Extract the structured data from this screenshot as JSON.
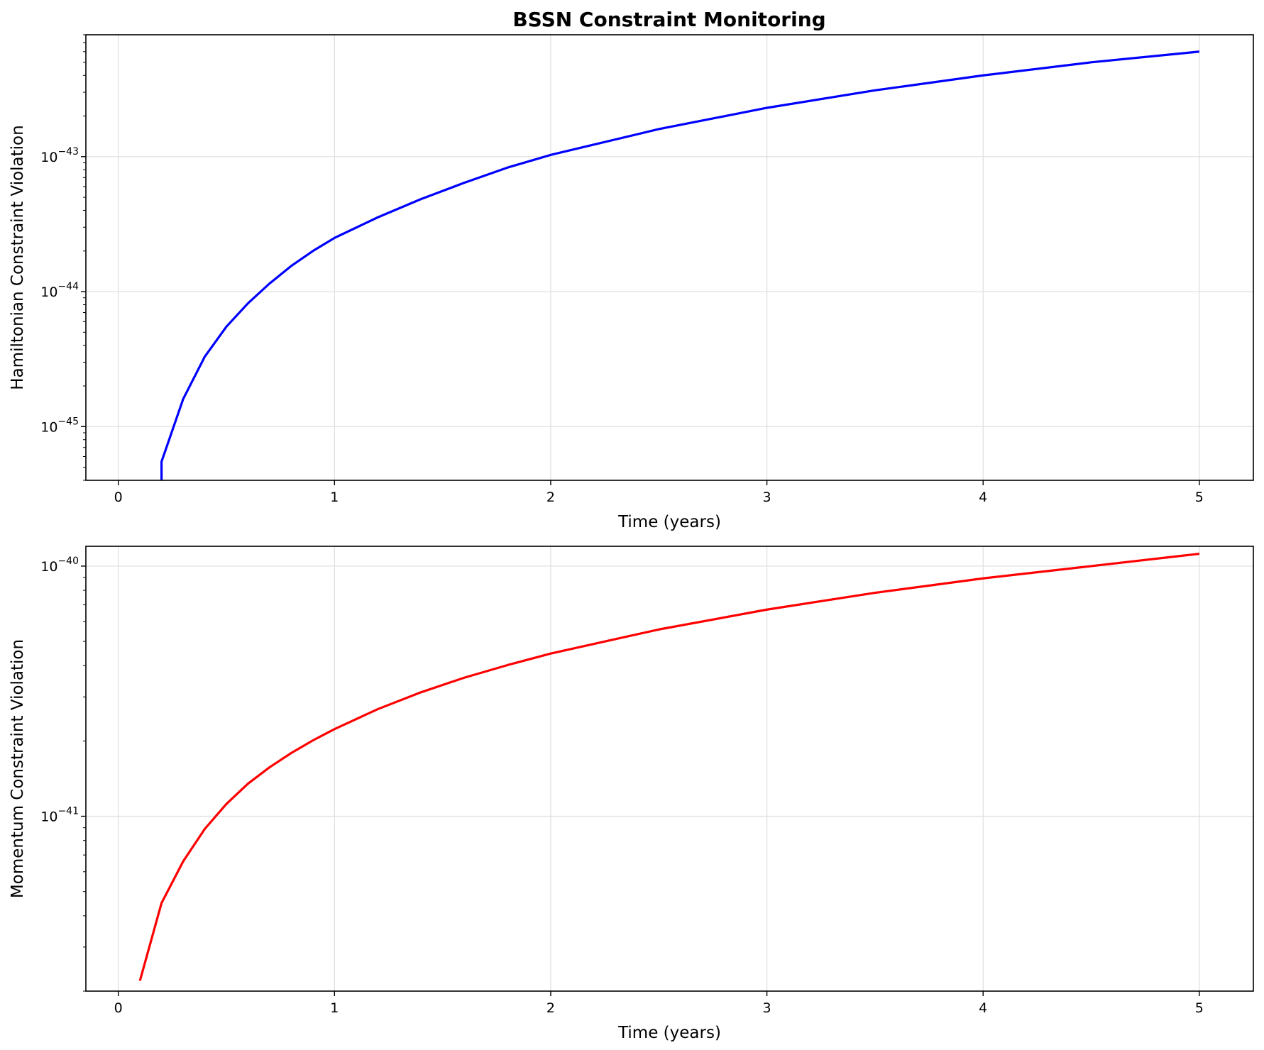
{
  "title": "BSSN Constraint Monitoring",
  "chart_data": [
    {
      "type": "line",
      "title": "BSSN Constraint Monitoring",
      "xlabel": "Time (years)",
      "ylabel": "Hamiltonian Constraint Violation",
      "yscale": "log",
      "xlim": [
        -0.15,
        5.25
      ],
      "ylim": [
        4e-46,
        8e-43
      ],
      "grid": true,
      "xticks": [
        0,
        1,
        2,
        3,
        4,
        5
      ],
      "xtick_labels": [
        "0",
        "1",
        "2",
        "3",
        "4",
        "5"
      ],
      "yticks": [
        {
          "value": 1e-45,
          "base": "10",
          "exp": "−45"
        },
        {
          "value": 1e-44,
          "base": "10",
          "exp": "−44"
        },
        {
          "value": 1e-43,
          "base": "10",
          "exp": "−43"
        }
      ],
      "series": [
        {
          "color": "#0000ff",
          "x": [
            0.2,
            0.2,
            0.3,
            0.4,
            0.5,
            0.6,
            0.7,
            0.8,
            0.9,
            1.0,
            1.2,
            1.4,
            1.6,
            1.8,
            2.0,
            2.5,
            3.0,
            3.5,
            4.0,
            4.5,
            5.0
          ],
          "y": [
            4e-46,
            5.5e-46,
            1.6e-45,
            3.3e-45,
            5.5e-45,
            8.2e-45,
            1.15e-44,
            1.55e-44,
            2e-44,
            2.5e-44,
            3.55e-44,
            4.85e-44,
            6.4e-44,
            8.3e-44,
            1.03e-43,
            1.6e-43,
            2.3e-43,
            3.1e-43,
            4e-43,
            5e-43,
            6e-43
          ]
        }
      ]
    },
    {
      "type": "line",
      "xlabel": "Time (years)",
      "ylabel": "Momentum Constraint Violation",
      "yscale": "log",
      "xlim": [
        -0.15,
        5.25
      ],
      "ylim": [
        2e-42,
        1.2e-40
      ],
      "grid": true,
      "xticks": [
        0,
        1,
        2,
        3,
        4,
        5
      ],
      "xtick_labels": [
        "0",
        "1",
        "2",
        "3",
        "4",
        "5"
      ],
      "yticks": [
        {
          "value": 1e-41,
          "base": "10",
          "exp": "−41"
        },
        {
          "value": 1e-40,
          "base": "10",
          "exp": "−40"
        }
      ],
      "series": [
        {
          "color": "#ff0000",
          "x": [
            0.1,
            0.2,
            0.3,
            0.4,
            0.5,
            0.6,
            0.7,
            0.8,
            0.9,
            1.0,
            1.2,
            1.4,
            1.6,
            1.8,
            2.0,
            2.5,
            3.0,
            3.5,
            4.0,
            4.5,
            5.0
          ],
          "y": [
            2.2e-42,
            4.5e-42,
            6.6e-42,
            8.9e-42,
            1.12e-41,
            1.35e-41,
            1.57e-41,
            1.79e-41,
            2.01e-41,
            2.23e-41,
            2.68e-41,
            3.13e-41,
            3.58e-41,
            4.02e-41,
            4.47e-41,
            5.58e-41,
            6.7e-41,
            7.82e-41,
            8.93e-41,
            1e-40,
            1.12e-40
          ]
        }
      ]
    }
  ]
}
